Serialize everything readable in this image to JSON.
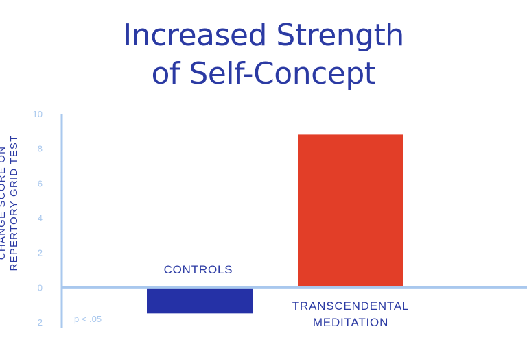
{
  "title_lines": [
    "Increased Strength",
    "of Self-Concept"
  ],
  "ylabel_lines": [
    "CHANGE SCORE ON",
    "REPERTORY GRID TEST"
  ],
  "footnote": "p < .05",
  "colors": {
    "title": "#2b3aa3",
    "axis": "#a9c8ee",
    "tick_text": "#a9c8ee",
    "controls_bar": "#2531a6",
    "tm_bar": "#e23e28",
    "category_label": "#2b3aa3"
  },
  "chart_data": {
    "type": "bar",
    "title": "Increased Strength of Self-Concept",
    "ylabel": "CHANGE SCORE ON REPERTORY GRID TEST",
    "xlabel": "",
    "ylim": [
      -2,
      10
    ],
    "yticks": [
      10,
      8,
      6,
      4,
      2,
      0,
      -2
    ],
    "grid": false,
    "categories": [
      "CONTROLS",
      "TRANSCENDENTAL MEDITATION"
    ],
    "category_label_lines": [
      [
        "CONTROLS"
      ],
      [
        "TRANSCENDENTAL",
        "MEDITATION"
      ]
    ],
    "values": [
      -1.5,
      8.8
    ],
    "annotation": "p < .05"
  }
}
